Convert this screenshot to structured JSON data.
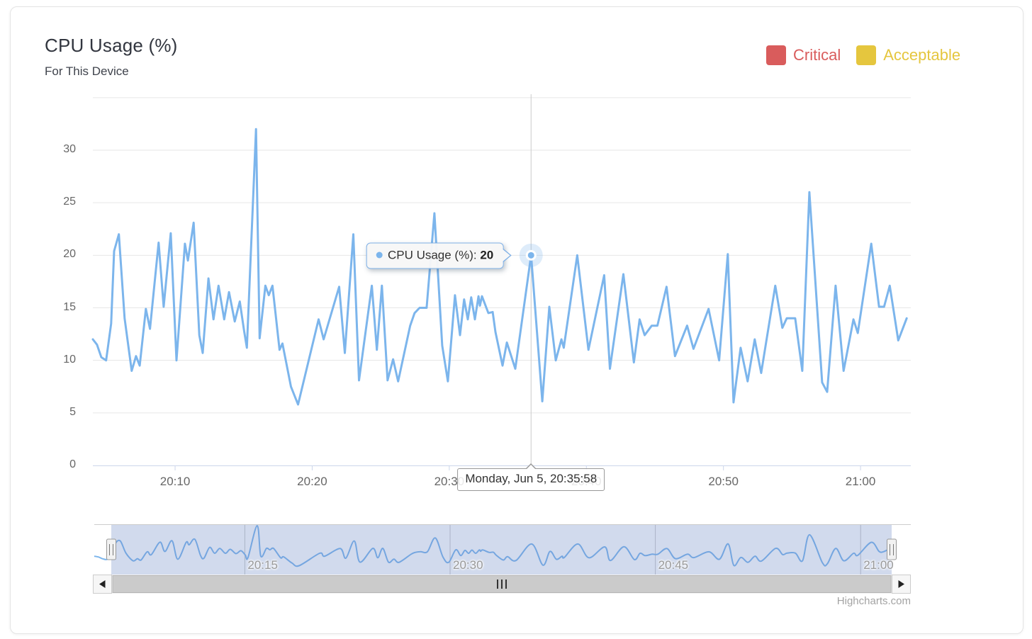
{
  "header": {
    "title": "CPU Usage (%)",
    "subtitle": "For This Device"
  },
  "legend": {
    "items": [
      {
        "label": "Critical",
        "color": "#d95c5c"
      },
      {
        "label": "Acceptable",
        "color": "#e5c63e"
      }
    ]
  },
  "tooltip": {
    "series_label": "CPU Usage (%):",
    "value": "20",
    "datetime": "Monday, Jun 5, 20:35:58"
  },
  "credits": "Highcharts.com",
  "theme": {
    "series": "#7cb5ec",
    "grid": "#e6e6e6",
    "axis_line": "#ccd6eb",
    "crosshair": "#cccccc",
    "label": "#666666",
    "nav_label": "#999999",
    "nav_outline": "#cccccc",
    "nav_grid": "#c8c8c8",
    "mask": "rgba(102,133,194,0.3)",
    "handle_bg": "#f2f2f2",
    "handle_border": "#999999",
    "scrollbar_track": "#f2f2f2",
    "scrollbar_thumb": "#cbcbcb",
    "scrollbar_thumb_border": "#b5b5b5",
    "scrollbar_button_bg": "#f6f6f6",
    "scrollbar_button_border": "#cccccc",
    "rivet": "#333333"
  },
  "chart_data": {
    "type": "line",
    "title": "CPU Usage (%)",
    "subtitle": "For This Device",
    "date": "Monday, Jun 5",
    "series": [
      {
        "name": "CPU Usage (%)",
        "color": "#7cb5ec",
        "points_note": "pairs of [seconds after 20:00:00, cpu %]",
        "points": [
          [
            240,
            12
          ],
          [
            258,
            11.5
          ],
          [
            277,
            10.3
          ],
          [
            298,
            10
          ],
          [
            320,
            13.5
          ],
          [
            333,
            20.4
          ],
          [
            354,
            22
          ],
          [
            379,
            14
          ],
          [
            410,
            9
          ],
          [
            429,
            10.4
          ],
          [
            445,
            9.5
          ],
          [
            472,
            14.9
          ],
          [
            490,
            13
          ],
          [
            528,
            21.2
          ],
          [
            550,
            15.1
          ],
          [
            581,
            22.1
          ],
          [
            606,
            10
          ],
          [
            643,
            21.1
          ],
          [
            656,
            19.5
          ],
          [
            681,
            23.1
          ],
          [
            706,
            12.4
          ],
          [
            721,
            10.7
          ],
          [
            746,
            17.8
          ],
          [
            768,
            13.9
          ],
          [
            790,
            17.1
          ],
          [
            815,
            13.9
          ],
          [
            836,
            16.5
          ],
          [
            861,
            13.7
          ],
          [
            883,
            15.6
          ],
          [
            902,
            12.8
          ],
          [
            914,
            11.2
          ],
          [
            954,
            32
          ],
          [
            970,
            12.1
          ],
          [
            995,
            17.1
          ],
          [
            1010,
            16.2
          ],
          [
            1026,
            17.1
          ],
          [
            1057,
            11
          ],
          [
            1070,
            11.6
          ],
          [
            1107,
            7.5
          ],
          [
            1138,
            5.8
          ],
          [
            1228,
            13.9
          ],
          [
            1250,
            12
          ],
          [
            1318,
            17
          ],
          [
            1343,
            10.7
          ],
          [
            1380,
            22
          ],
          [
            1405,
            8.1
          ],
          [
            1461,
            17.1
          ],
          [
            1483,
            11
          ],
          [
            1505,
            17.1
          ],
          [
            1530,
            8.1
          ],
          [
            1554,
            10.1
          ],
          [
            1576,
            8
          ],
          [
            1629,
            13.3
          ],
          [
            1648,
            14.5
          ],
          [
            1670,
            15
          ],
          [
            1701,
            15
          ],
          [
            1735,
            24
          ],
          [
            1769,
            11.4
          ],
          [
            1794,
            8
          ],
          [
            1825,
            16.2
          ],
          [
            1847,
            12.4
          ],
          [
            1865,
            15.8
          ],
          [
            1881,
            13.9
          ],
          [
            1896,
            16
          ],
          [
            1912,
            13.9
          ],
          [
            1928,
            16.1
          ],
          [
            1934,
            15.2
          ],
          [
            1943,
            16.1
          ],
          [
            1971,
            14.5
          ],
          [
            1990,
            14.6
          ],
          [
            2002,
            12.7
          ],
          [
            2033,
            9.5
          ],
          [
            2052,
            11.7
          ],
          [
            2089,
            9.2
          ],
          [
            2158,
            20
          ],
          [
            2207,
            6.1
          ],
          [
            2238,
            15.1
          ],
          [
            2266,
            10
          ],
          [
            2291,
            12
          ],
          [
            2301,
            11.2
          ],
          [
            2360,
            20
          ],
          [
            2409,
            11
          ],
          [
            2478,
            18.1
          ],
          [
            2503,
            9.2
          ],
          [
            2562,
            18.2
          ],
          [
            2608,
            9.8
          ],
          [
            2633,
            13.9
          ],
          [
            2655,
            12.4
          ],
          [
            2686,
            13.3
          ],
          [
            2711,
            13.3
          ],
          [
            2751,
            17
          ],
          [
            2788,
            10.4
          ],
          [
            2841,
            13.3
          ],
          [
            2869,
            11.1
          ],
          [
            2935,
            14.9
          ],
          [
            2981,
            10
          ],
          [
            3019,
            20.1
          ],
          [
            3044,
            6
          ],
          [
            3075,
            11.2
          ],
          [
            3106,
            8
          ],
          [
            3137,
            12
          ],
          [
            3165,
            8.8
          ],
          [
            3227,
            17.1
          ],
          [
            3258,
            13.1
          ],
          [
            3277,
            14
          ],
          [
            3314,
            14
          ],
          [
            3345,
            9
          ],
          [
            3376,
            26
          ],
          [
            3432,
            7.9
          ],
          [
            3454,
            7
          ],
          [
            3491,
            17.1
          ],
          [
            3526,
            9
          ],
          [
            3569,
            13.9
          ],
          [
            3588,
            12.6
          ],
          [
            3647,
            21.1
          ],
          [
            3681,
            15.1
          ],
          [
            3703,
            15.1
          ],
          [
            3728,
            17.1
          ],
          [
            3765,
            11.9
          ],
          [
            3802,
            14
          ]
        ]
      }
    ],
    "x_axis": {
      "type": "datetime",
      "start": "20:04:00",
      "end": "21:03:40",
      "ticks": [
        {
          "sec": 600,
          "label": "20:10"
        },
        {
          "sec": 1200,
          "label": "20:20"
        },
        {
          "sec": 1800,
          "label": "20:30"
        },
        {
          "sec": 2400,
          "label": "20:40"
        },
        {
          "sec": 3000,
          "label": "20:50"
        },
        {
          "sec": 3600,
          "label": "21:00"
        }
      ]
    },
    "y_axis": {
      "min": 0,
      "max": 35,
      "tick_interval": 5,
      "grid": true,
      "tick_labels": [
        "0",
        "5",
        "10",
        "15",
        "20",
        "25",
        "30"
      ]
    },
    "hover_point": {
      "sec": 2158,
      "value": 20,
      "time_label": "20:35:58"
    },
    "navigator": {
      "ticks": [
        {
          "sec": 900,
          "label": "20:15"
        },
        {
          "sec": 1800,
          "label": "20:30"
        },
        {
          "sec": 2700,
          "label": "20:45"
        },
        {
          "sec": 3600,
          "label": "21:00"
        }
      ]
    },
    "zones": [
      {
        "name": "Critical",
        "color": "#d95c5c"
      },
      {
        "name": "Acceptable",
        "color": "#e5c63e"
      }
    ],
    "legend_position": "top-right"
  }
}
